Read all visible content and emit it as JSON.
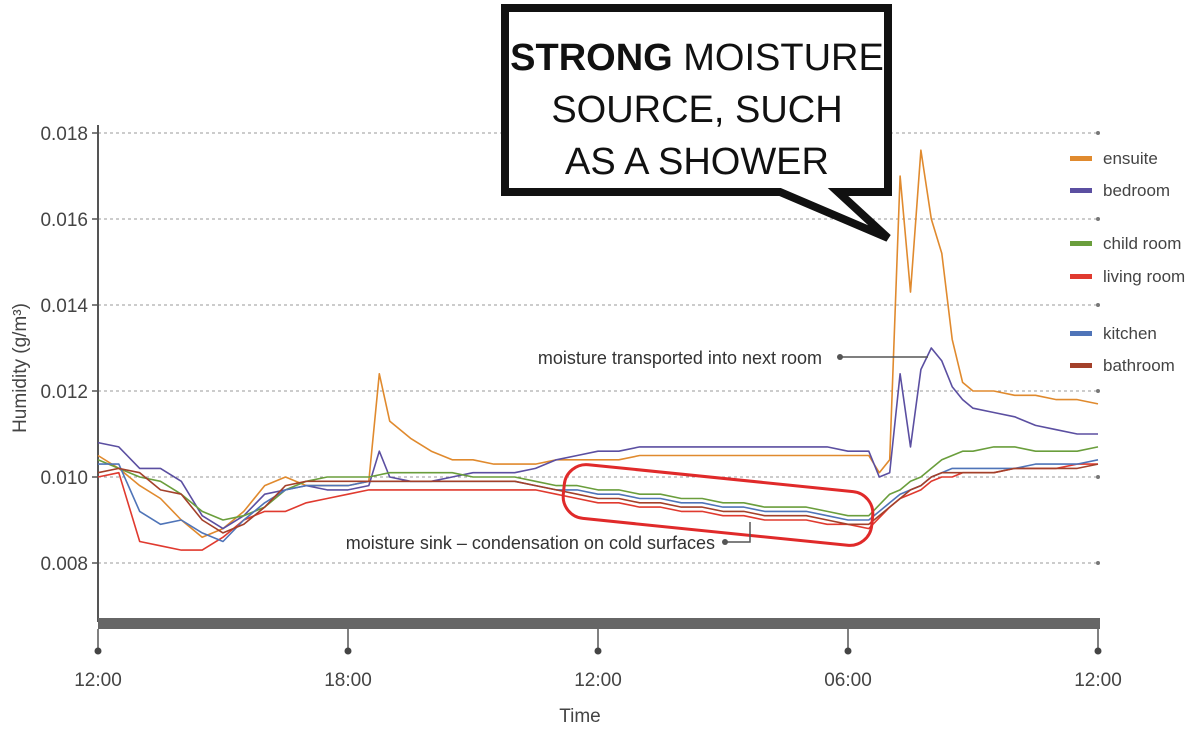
{
  "chart_data": {
    "type": "line",
    "title": "",
    "xlabel": "Time",
    "ylabel": "Humidity (g/m³)",
    "x_ticks": [
      "12:00",
      "18:00",
      "12:00",
      "06:00",
      "12:00"
    ],
    "x_range_hours": [
      0,
      48
    ],
    "y_ticks": [
      "0.018",
      "0.016",
      "0.014",
      "0.012",
      "0.010",
      "0.008"
    ],
    "ylim": [
      0.0065,
      0.0185
    ],
    "grid": "horizontal dashed",
    "legend_placement": "right",
    "series": [
      {
        "name": "ensuite",
        "color": "#e08a2e",
        "x": [
          0,
          1,
          2,
          3,
          4,
          5,
          6,
          7,
          8,
          9,
          10,
          11,
          12,
          13,
          13.5,
          14,
          15,
          16,
          17,
          18,
          19,
          20,
          21,
          22,
          23,
          24,
          25,
          26,
          27,
          28,
          29,
          30,
          31,
          32,
          33,
          34,
          35,
          36,
          37,
          37.5,
          38,
          38.5,
          39,
          39.5,
          40,
          40.5,
          41,
          41.5,
          42,
          43,
          44,
          45,
          46,
          47,
          48
        ],
        "y": [
          0.0105,
          0.0102,
          0.0098,
          0.0095,
          0.009,
          0.0086,
          0.0088,
          0.0092,
          0.0098,
          0.01,
          0.0098,
          0.0098,
          0.0098,
          0.0099,
          0.0124,
          0.0113,
          0.0109,
          0.0106,
          0.0104,
          0.0104,
          0.0103,
          0.0103,
          0.0103,
          0.0104,
          0.0104,
          0.0104,
          0.0104,
          0.0105,
          0.0105,
          0.0105,
          0.0105,
          0.0105,
          0.0105,
          0.0105,
          0.0105,
          0.0105,
          0.0105,
          0.0105,
          0.0105,
          0.0101,
          0.0104,
          0.017,
          0.0143,
          0.0176,
          0.016,
          0.0152,
          0.0132,
          0.0122,
          0.012,
          0.012,
          0.0119,
          0.0119,
          0.0118,
          0.0118,
          0.0117
        ]
      },
      {
        "name": "bedroom",
        "color": "#5b4fa1",
        "x": [
          0,
          1,
          2,
          3,
          4,
          5,
          6,
          7,
          8,
          9,
          10,
          11,
          12,
          13,
          13.5,
          14,
          15,
          16,
          17,
          18,
          19,
          20,
          21,
          22,
          23,
          24,
          25,
          26,
          27,
          28,
          29,
          30,
          31,
          32,
          33,
          34,
          35,
          36,
          37,
          37.5,
          38,
          38.5,
          39,
          39.5,
          40,
          40.5,
          41,
          41.5,
          42,
          43,
          44,
          45,
          46,
          47,
          48
        ],
        "y": [
          0.0108,
          0.0107,
          0.0102,
          0.0102,
          0.0099,
          0.0091,
          0.0088,
          0.0091,
          0.0096,
          0.0097,
          0.0098,
          0.0097,
          0.0097,
          0.0098,
          0.0106,
          0.01,
          0.0099,
          0.0099,
          0.01,
          0.0101,
          0.0101,
          0.0101,
          0.0102,
          0.0104,
          0.0105,
          0.0106,
          0.0106,
          0.0107,
          0.0107,
          0.0107,
          0.0107,
          0.0107,
          0.0107,
          0.0107,
          0.0107,
          0.0107,
          0.0107,
          0.0106,
          0.0106,
          0.01,
          0.0101,
          0.0124,
          0.0107,
          0.0125,
          0.013,
          0.0127,
          0.0121,
          0.0118,
          0.0116,
          0.0115,
          0.0114,
          0.0112,
          0.0111,
          0.011,
          0.011
        ]
      },
      {
        "name": "child room",
        "color": "#6a9e3c",
        "x": [
          0,
          1,
          2,
          3,
          4,
          5,
          6,
          7,
          8,
          9,
          10,
          11,
          12,
          13,
          14,
          15,
          16,
          17,
          18,
          19,
          20,
          21,
          22,
          23,
          24,
          25,
          26,
          27,
          28,
          29,
          30,
          31,
          32,
          33,
          34,
          35,
          36,
          37,
          38,
          38.5,
          39,
          39.5,
          40,
          40.5,
          41,
          41.5,
          42,
          43,
          44,
          45,
          46,
          47,
          48
        ],
        "y": [
          0.0104,
          0.0102,
          0.01,
          0.0099,
          0.0096,
          0.0092,
          0.009,
          0.0091,
          0.0093,
          0.0097,
          0.0099,
          0.01,
          0.01,
          0.01,
          0.0101,
          0.0101,
          0.0101,
          0.0101,
          0.01,
          0.01,
          0.01,
          0.0099,
          0.0098,
          0.0098,
          0.0097,
          0.0097,
          0.0096,
          0.0096,
          0.0095,
          0.0095,
          0.0094,
          0.0094,
          0.0093,
          0.0093,
          0.0093,
          0.0092,
          0.0091,
          0.0091,
          0.0096,
          0.0097,
          0.0099,
          0.01,
          0.0102,
          0.0104,
          0.0105,
          0.0106,
          0.0106,
          0.0107,
          0.0107,
          0.0106,
          0.0106,
          0.0106,
          0.0107
        ]
      },
      {
        "name": "living room",
        "color": "#e03a2f",
        "x": [
          0,
          1,
          2,
          3,
          4,
          5,
          6,
          7,
          8,
          9,
          10,
          11,
          12,
          13,
          14,
          15,
          16,
          17,
          18,
          19,
          20,
          21,
          22,
          23,
          24,
          25,
          26,
          27,
          28,
          29,
          30,
          31,
          32,
          33,
          34,
          35,
          36,
          37,
          38,
          38.5,
          39,
          39.5,
          40,
          40.5,
          41,
          41.5,
          42,
          43,
          44,
          45,
          46,
          47,
          48
        ],
        "y": [
          0.01,
          0.0101,
          0.0085,
          0.0084,
          0.0083,
          0.0083,
          0.0086,
          0.009,
          0.0092,
          0.0092,
          0.0094,
          0.0095,
          0.0096,
          0.0097,
          0.0097,
          0.0097,
          0.0097,
          0.0097,
          0.0097,
          0.0097,
          0.0097,
          0.0097,
          0.0096,
          0.0095,
          0.0094,
          0.0094,
          0.0093,
          0.0093,
          0.0092,
          0.0092,
          0.0091,
          0.0091,
          0.009,
          0.009,
          0.009,
          0.0089,
          0.0089,
          0.0088,
          0.0093,
          0.0095,
          0.0096,
          0.0097,
          0.0099,
          0.01,
          0.01,
          0.0101,
          0.0101,
          0.0101,
          0.0102,
          0.0102,
          0.0102,
          0.0103,
          0.0103
        ]
      },
      {
        "name": "kitchen",
        "color": "#4f74b8",
        "x": [
          0,
          1,
          2,
          3,
          4,
          5,
          6,
          7,
          8,
          9,
          10,
          11,
          12,
          13,
          14,
          15,
          16,
          17,
          18,
          19,
          20,
          21,
          22,
          23,
          24,
          25,
          26,
          27,
          28,
          29,
          30,
          31,
          32,
          33,
          34,
          35,
          36,
          37,
          38,
          38.5,
          39,
          39.5,
          40,
          40.5,
          41,
          41.5,
          42,
          43,
          44,
          45,
          46,
          47,
          48
        ],
        "y": [
          0.0103,
          0.0103,
          0.0092,
          0.0089,
          0.009,
          0.0087,
          0.0085,
          0.009,
          0.0094,
          0.0097,
          0.0098,
          0.0098,
          0.0098,
          0.0099,
          0.0099,
          0.0099,
          0.0099,
          0.0099,
          0.0099,
          0.0099,
          0.0099,
          0.0098,
          0.0097,
          0.0097,
          0.0096,
          0.0096,
          0.0095,
          0.0095,
          0.0094,
          0.0094,
          0.0093,
          0.0093,
          0.0092,
          0.0092,
          0.0092,
          0.0091,
          0.009,
          0.009,
          0.0094,
          0.0096,
          0.0097,
          0.0098,
          0.01,
          0.0101,
          0.0102,
          0.0102,
          0.0102,
          0.0102,
          0.0102,
          0.0103,
          0.0103,
          0.0103,
          0.0104
        ]
      },
      {
        "name": "bathroom",
        "color": "#a3402a",
        "x": [
          0,
          1,
          2,
          3,
          4,
          5,
          6,
          7,
          8,
          9,
          10,
          11,
          12,
          13,
          14,
          15,
          16,
          17,
          18,
          19,
          20,
          21,
          22,
          23,
          24,
          25,
          26,
          27,
          28,
          29,
          30,
          31,
          32,
          33,
          34,
          35,
          36,
          37,
          38,
          38.5,
          39,
          39.5,
          40,
          40.5,
          41,
          41.5,
          42,
          43,
          44,
          45,
          46,
          47,
          48
        ],
        "y": [
          0.0101,
          0.0102,
          0.0101,
          0.0097,
          0.0096,
          0.009,
          0.0087,
          0.0089,
          0.0093,
          0.0098,
          0.0099,
          0.0099,
          0.0099,
          0.0099,
          0.0099,
          0.0099,
          0.0099,
          0.0099,
          0.0099,
          0.0099,
          0.0099,
          0.0098,
          0.0097,
          0.0096,
          0.0095,
          0.0095,
          0.0094,
          0.0094,
          0.0093,
          0.0093,
          0.0092,
          0.0092,
          0.0091,
          0.0091,
          0.0091,
          0.009,
          0.0089,
          0.0089,
          0.0093,
          0.0095,
          0.0097,
          0.0098,
          0.01,
          0.0101,
          0.0101,
          0.0101,
          0.0101,
          0.0101,
          0.0102,
          0.0102,
          0.0102,
          0.0102,
          0.0103
        ]
      }
    ],
    "annotations": {
      "callout_strong": "STRONG",
      "callout_line1_rest": " MOISTURE",
      "callout_line2": "SOURCE, SUCH",
      "callout_line3": "AS A SHOWER",
      "transport": "moisture transported into next room",
      "sink": "moisture sink – condensation on cold surfaces"
    }
  }
}
